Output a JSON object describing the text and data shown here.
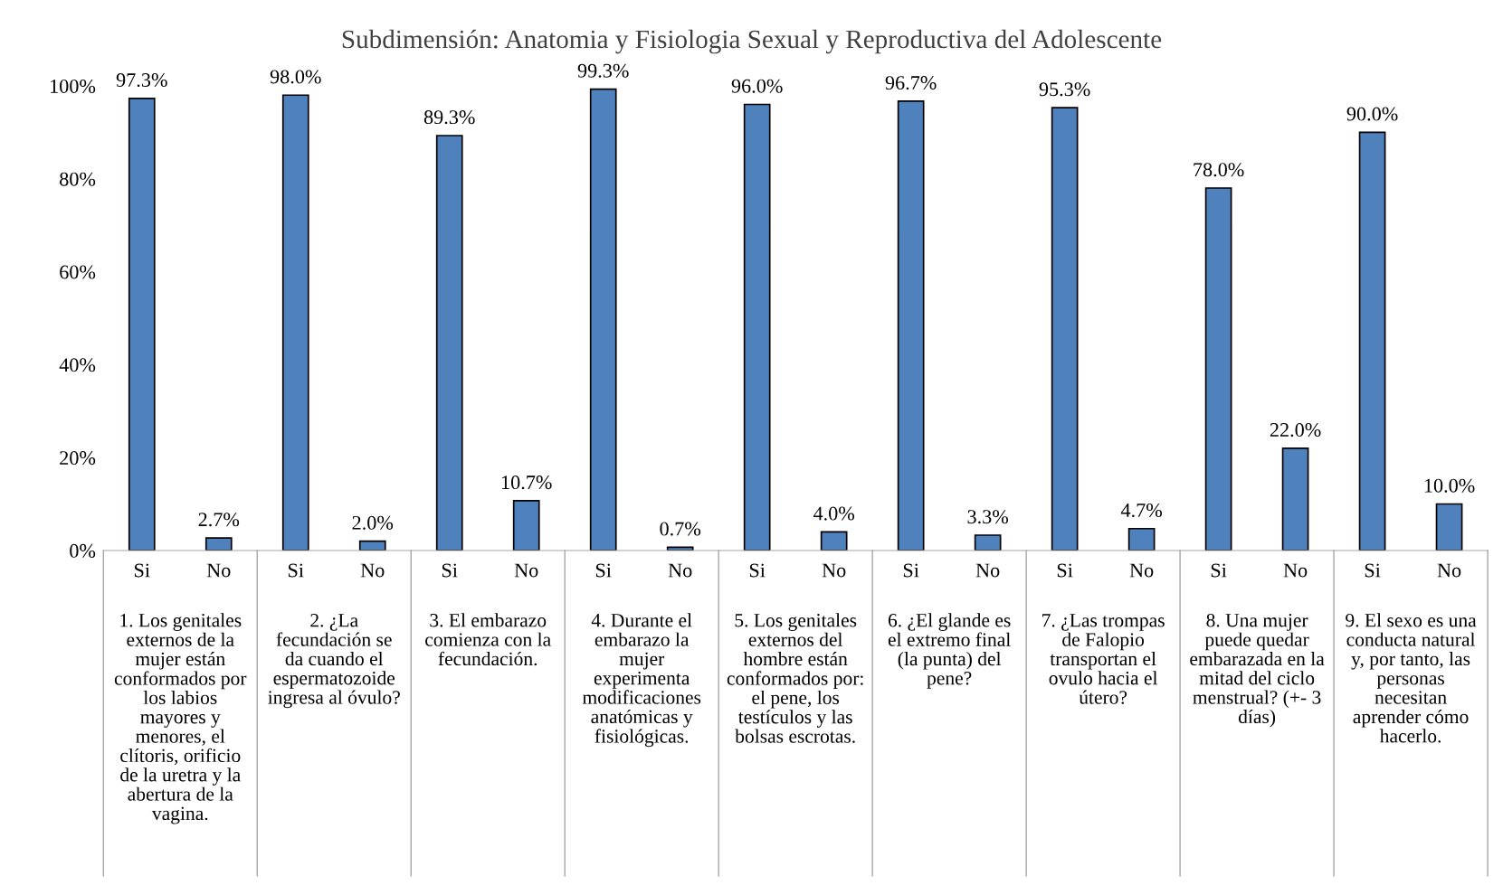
{
  "chart_data": {
    "type": "bar",
    "title": "Subdimensión: Anatomia y Fisiologia Sexual y Reproductiva del Adolescente",
    "categories": [
      "Si",
      "No",
      "Si",
      "No",
      "Si",
      "No",
      "Si",
      "No",
      "Si",
      "No",
      "Si",
      "No",
      "Si",
      "No",
      "Si",
      "No",
      "Si",
      "No"
    ],
    "values": [
      97.3,
      2.7,
      98.0,
      2.0,
      89.3,
      10.7,
      99.3,
      0.7,
      96.0,
      4.0,
      96.7,
      3.3,
      95.3,
      4.7,
      78.0,
      22.0,
      90.0,
      10.0
    ],
    "value_labels": [
      "97.3%",
      "2.7%",
      "98.0%",
      "2.0%",
      "89.3%",
      "10.7%",
      "99.3%",
      "0.7%",
      "96.0%",
      "4.0%",
      "96.7%",
      "3.3%",
      "95.3%",
      "4.7%",
      "78.0%",
      "22.0%",
      "90.0%",
      "10.0%"
    ],
    "color": "#4f81bd",
    "ylim": [
      0,
      100
    ],
    "yticks": [
      {
        "value": 0,
        "label": "0%"
      },
      {
        "value": 20,
        "label": "20%"
      },
      {
        "value": 40,
        "label": "40%"
      },
      {
        "value": 60,
        "label": "60%"
      },
      {
        "value": 80,
        "label": "80%"
      },
      {
        "value": 100,
        "label": "100%"
      }
    ],
    "grid": false,
    "annotations": [
      "1. Los genitales\nexternos de la\nmujer están\nconformados por\nlos labios\nmayores y\nmenores, el\nclítoris, orificio\nde la uretra y la\nabertura de la\nvagina.",
      "2. ¿La\nfecundación se\nda cuando el\nespermatozoide\ningresa al óvulo?",
      "3. El embarazo\ncomienza con la\nfecundación.",
      "4. Durante el\nembarazo la\nmujer\nexperimenta\nmodificaciones\nanatómicas y\nfisiológicas.",
      "5. Los genitales\nexternos del\nhombre están\nconformados por:\nel pene, los\ntestículos y las\nbolsas escrotas.",
      "6. ¿El glande es\nel extremo final\n(la punta) del\npene?",
      "7. ¿Las trompas\nde Falopio\ntransportan el\novulo hacia el\nútero?",
      "8. Una mujer\npuede quedar\nembarazada en la\nmitad del ciclo\nmenstrual? (+- 3\ndías)",
      "9. El sexo es una\nconducta natural\ny, por tanto, las\npersonas\nnecesitan\naprender cómo\nhacerlo."
    ]
  }
}
